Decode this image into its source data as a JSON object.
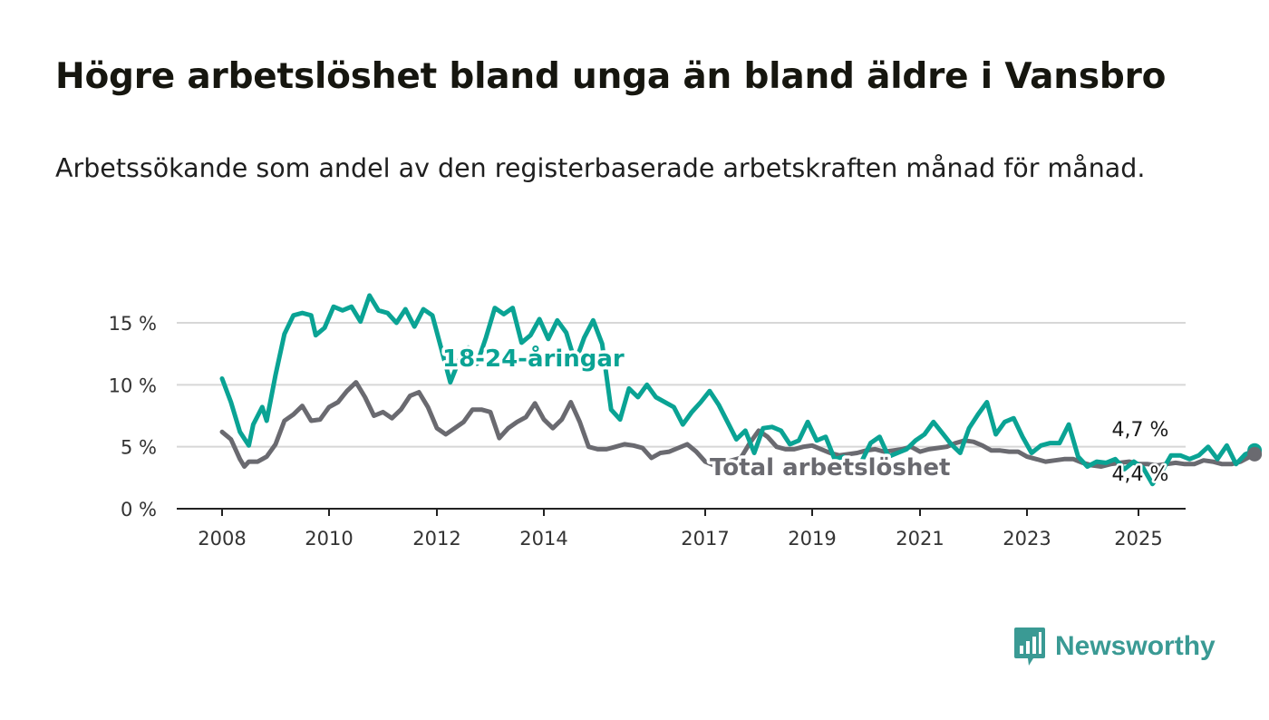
{
  "title": "Högre arbetslöshet bland unga än bland äldre i Vansbro",
  "subtitle": "Arbetssökande som andel av den registerbaserade arbetskraften månad för månad.",
  "brand": {
    "name": "Newsworthy",
    "color": "#3a9a94"
  },
  "colors": {
    "youth": "#0aa394",
    "total": "#6a6a70",
    "grid": "#d7d7d7",
    "axis": "#222222"
  },
  "chart_data": {
    "type": "line",
    "x_ticks": [
      "2008",
      "2010",
      "2012",
      "2014",
      "2017",
      "2019",
      "2021",
      "2023",
      "2025"
    ],
    "y_ticks": [
      "0 %",
      "5 %",
      "10 %",
      "15 %"
    ],
    "ylim": [
      0,
      15
    ],
    "grid": true,
    "series": [
      {
        "name": "18-24-åringar",
        "color": "#0aa394",
        "end_label": "4,7 %",
        "points": [
          [
            "2008-01",
            10.5
          ],
          [
            "2008-03",
            8.6
          ],
          [
            "2008-05",
            6.2
          ],
          [
            "2008-07",
            5.1
          ],
          [
            "2008-08",
            6.8
          ],
          [
            "2008-10",
            8.2
          ],
          [
            "2008-11",
            7.1
          ],
          [
            "2009-01",
            10.8
          ],
          [
            "2009-03",
            14.1
          ],
          [
            "2009-05",
            15.6
          ],
          [
            "2009-07",
            15.8
          ],
          [
            "2009-09",
            15.6
          ],
          [
            "2009-10",
            14.0
          ],
          [
            "2009-12",
            14.6
          ],
          [
            "2010-02",
            16.3
          ],
          [
            "2010-04",
            16.0
          ],
          [
            "2010-06",
            16.3
          ],
          [
            "2010-08",
            15.1
          ],
          [
            "2010-10",
            17.2
          ],
          [
            "2010-12",
            16.0
          ],
          [
            "2011-02",
            15.8
          ],
          [
            "2011-04",
            15.0
          ],
          [
            "2011-06",
            16.1
          ],
          [
            "2011-08",
            14.7
          ],
          [
            "2011-10",
            16.1
          ],
          [
            "2011-12",
            15.6
          ],
          [
            "2012-02",
            12.9
          ],
          [
            "2012-04",
            10.2
          ],
          [
            "2012-06",
            12.0
          ],
          [
            "2012-08",
            13.0
          ],
          [
            "2012-10",
            11.7
          ],
          [
            "2012-12",
            13.8
          ],
          [
            "2013-02",
            16.2
          ],
          [
            "2013-04",
            15.7
          ],
          [
            "2013-06",
            16.2
          ],
          [
            "2013-08",
            13.4
          ],
          [
            "2013-10",
            14.0
          ],
          [
            "2013-12",
            15.3
          ],
          [
            "2014-02",
            13.7
          ],
          [
            "2014-04",
            15.2
          ],
          [
            "2014-06",
            14.2
          ],
          [
            "2014-08",
            11.8
          ],
          [
            "2014-10",
            13.8
          ],
          [
            "2014-12",
            15.2
          ],
          [
            "2015-02",
            13.3
          ],
          [
            "2015-04",
            8.0
          ],
          [
            "2015-06",
            7.2
          ],
          [
            "2015-08",
            9.7
          ],
          [
            "2015-10",
            9.0
          ],
          [
            "2015-12",
            10.0
          ],
          [
            "2016-02",
            9.0
          ],
          [
            "2016-06",
            8.2
          ],
          [
            "2016-08",
            6.8
          ],
          [
            "2016-10",
            7.8
          ],
          [
            "2016-12",
            8.6
          ],
          [
            "2017-02",
            9.5
          ],
          [
            "2017-04",
            8.4
          ],
          [
            "2017-06",
            7.0
          ],
          [
            "2017-08",
            5.6
          ],
          [
            "2017-10",
            6.3
          ],
          [
            "2017-12",
            4.5
          ],
          [
            "2018-02",
            6.5
          ],
          [
            "2018-04",
            6.6
          ],
          [
            "2018-06",
            6.3
          ],
          [
            "2018-08",
            5.2
          ],
          [
            "2018-10",
            5.5
          ],
          [
            "2018-12",
            7.0
          ],
          [
            "2019-02",
            5.5
          ],
          [
            "2019-04",
            5.8
          ],
          [
            "2019-06",
            4.0
          ],
          [
            "2019-08",
            4.2
          ],
          [
            "2019-10",
            3.6
          ],
          [
            "2019-12",
            3.8
          ],
          [
            "2020-02",
            5.3
          ],
          [
            "2020-04",
            5.8
          ],
          [
            "2020-06",
            4.2
          ],
          [
            "2020-08",
            4.5
          ],
          [
            "2020-10",
            4.8
          ],
          [
            "2020-12",
            5.5
          ],
          [
            "2021-02",
            6.0
          ],
          [
            "2021-04",
            7.0
          ],
          [
            "2021-06",
            6.1
          ],
          [
            "2021-08",
            5.2
          ],
          [
            "2021-10",
            4.5
          ],
          [
            "2021-12",
            6.5
          ],
          [
            "2022-02",
            7.6
          ],
          [
            "2022-04",
            8.6
          ],
          [
            "2022-06",
            6.0
          ],
          [
            "2022-08",
            7.0
          ],
          [
            "2022-10",
            7.3
          ],
          [
            "2022-12",
            5.8
          ],
          [
            "2023-02",
            4.5
          ],
          [
            "2023-04",
            5.1
          ],
          [
            "2023-06",
            5.3
          ],
          [
            "2023-08",
            5.3
          ],
          [
            "2023-10",
            6.8
          ],
          [
            "2023-12",
            4.2
          ],
          [
            "2024-02",
            3.4
          ],
          [
            "2024-04",
            3.8
          ],
          [
            "2024-06",
            3.7
          ],
          [
            "2024-08",
            4.0
          ],
          [
            "2024-10",
            3.2
          ],
          [
            "2024-12",
            3.8
          ],
          [
            "2025-02",
            3.3
          ],
          [
            "2025-04",
            2.0
          ],
          [
            "2025-06",
            3.0
          ],
          [
            "2025-08",
            4.3
          ],
          [
            "2025-10",
            4.3
          ],
          [
            "2025-12",
            4.0
          ],
          [
            "2026-02",
            4.3
          ],
          [
            "2026-04",
            5.0
          ],
          [
            "2026-06",
            4.0
          ],
          [
            "2026-08",
            5.1
          ],
          [
            "2026-10",
            3.6
          ],
          [
            "2026-12",
            4.4
          ],
          [
            "2027-02",
            4.7
          ]
        ]
      },
      {
        "name": "Total arbetslöshet",
        "color": "#6a6a70",
        "end_label": "4,4 %",
        "points": [
          [
            "2008-01",
            6.2
          ],
          [
            "2008-03",
            5.6
          ],
          [
            "2008-05",
            4.0
          ],
          [
            "2008-06",
            3.4
          ],
          [
            "2008-07",
            3.8
          ],
          [
            "2008-09",
            3.8
          ],
          [
            "2008-11",
            4.2
          ],
          [
            "2009-01",
            5.2
          ],
          [
            "2009-03",
            7.1
          ],
          [
            "2009-05",
            7.6
          ],
          [
            "2009-07",
            8.3
          ],
          [
            "2009-09",
            7.1
          ],
          [
            "2009-11",
            7.2
          ],
          [
            "2010-01",
            8.2
          ],
          [
            "2010-03",
            8.6
          ],
          [
            "2010-05",
            9.5
          ],
          [
            "2010-07",
            10.2
          ],
          [
            "2010-09",
            9.0
          ],
          [
            "2010-11",
            7.5
          ],
          [
            "2011-01",
            7.8
          ],
          [
            "2011-03",
            7.3
          ],
          [
            "2011-05",
            8.0
          ],
          [
            "2011-07",
            9.1
          ],
          [
            "2011-09",
            9.4
          ],
          [
            "2011-11",
            8.2
          ],
          [
            "2012-01",
            6.5
          ],
          [
            "2012-03",
            6.0
          ],
          [
            "2012-05",
            6.5
          ],
          [
            "2012-07",
            7.0
          ],
          [
            "2012-09",
            8.0
          ],
          [
            "2012-11",
            8.0
          ],
          [
            "2013-01",
            7.8
          ],
          [
            "2013-03",
            5.7
          ],
          [
            "2013-05",
            6.5
          ],
          [
            "2013-07",
            7.0
          ],
          [
            "2013-09",
            7.4
          ],
          [
            "2013-11",
            8.5
          ],
          [
            "2014-01",
            7.2
          ],
          [
            "2014-03",
            6.5
          ],
          [
            "2014-05",
            7.2
          ],
          [
            "2014-07",
            8.6
          ],
          [
            "2014-09",
            7.0
          ],
          [
            "2014-11",
            5.0
          ],
          [
            "2015-01",
            4.8
          ],
          [
            "2015-03",
            4.8
          ],
          [
            "2015-05",
            5.0
          ],
          [
            "2015-07",
            5.2
          ],
          [
            "2015-09",
            5.1
          ],
          [
            "2015-11",
            4.9
          ],
          [
            "2016-01",
            4.1
          ],
          [
            "2016-03",
            4.5
          ],
          [
            "2016-05",
            4.6
          ],
          [
            "2016-07",
            4.9
          ],
          [
            "2016-09",
            5.2
          ],
          [
            "2016-11",
            4.6
          ],
          [
            "2017-01",
            3.8
          ],
          [
            "2017-03",
            3.5
          ],
          [
            "2017-05",
            3.7
          ],
          [
            "2017-07",
            3.9
          ],
          [
            "2017-09",
            4.1
          ],
          [
            "2017-11",
            5.3
          ],
          [
            "2018-01",
            6.3
          ],
          [
            "2018-03",
            5.8
          ],
          [
            "2018-05",
            5.0
          ],
          [
            "2018-07",
            4.8
          ],
          [
            "2018-09",
            4.8
          ],
          [
            "2018-11",
            5.0
          ],
          [
            "2019-01",
            5.1
          ],
          [
            "2019-03",
            4.8
          ],
          [
            "2019-05",
            4.5
          ],
          [
            "2019-07",
            4.3
          ],
          [
            "2019-09",
            4.4
          ],
          [
            "2019-11",
            4.5
          ],
          [
            "2020-01",
            4.7
          ],
          [
            "2020-03",
            4.8
          ],
          [
            "2020-05",
            4.6
          ],
          [
            "2020-07",
            4.7
          ],
          [
            "2020-09",
            4.8
          ],
          [
            "2020-11",
            5.0
          ],
          [
            "2021-01",
            4.6
          ],
          [
            "2021-03",
            4.8
          ],
          [
            "2021-05",
            4.9
          ],
          [
            "2021-07",
            5.0
          ],
          [
            "2021-09",
            5.3
          ],
          [
            "2021-11",
            5.5
          ],
          [
            "2022-01",
            5.4
          ],
          [
            "2022-03",
            5.1
          ],
          [
            "2022-05",
            4.7
          ],
          [
            "2022-07",
            4.7
          ],
          [
            "2022-09",
            4.6
          ],
          [
            "2022-11",
            4.6
          ],
          [
            "2023-01",
            4.2
          ],
          [
            "2023-03",
            4.0
          ],
          [
            "2023-05",
            3.8
          ],
          [
            "2023-07",
            3.9
          ],
          [
            "2023-09",
            4.0
          ],
          [
            "2023-11",
            4.0
          ],
          [
            "2024-01",
            3.7
          ],
          [
            "2024-03",
            3.5
          ],
          [
            "2024-05",
            3.4
          ],
          [
            "2024-07",
            3.6
          ],
          [
            "2024-09",
            3.7
          ],
          [
            "2024-11",
            3.8
          ],
          [
            "2025-01",
            3.6
          ],
          [
            "2025-03",
            3.6
          ],
          [
            "2025-05",
            3.5
          ],
          [
            "2025-07",
            3.6
          ],
          [
            "2025-09",
            3.7
          ],
          [
            "2025-11",
            3.6
          ],
          [
            "2026-01",
            3.6
          ],
          [
            "2026-03",
            3.9
          ],
          [
            "2026-05",
            3.8
          ],
          [
            "2026-07",
            3.6
          ],
          [
            "2026-09",
            3.6
          ],
          [
            "2026-11",
            3.8
          ],
          [
            "2027-02",
            4.4
          ]
        ]
      }
    ]
  }
}
